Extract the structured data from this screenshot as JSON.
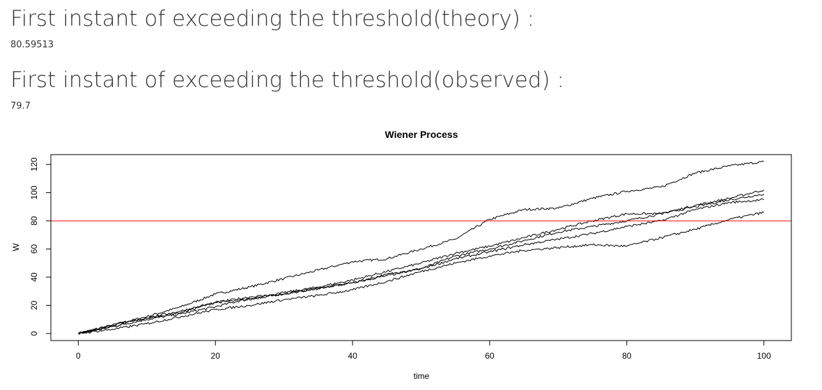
{
  "sections": [
    {
      "heading": "First instant of exceeding the threshold(theory) :",
      "value": "80.59513"
    },
    {
      "heading": "First instant of exceeding the threshold(observed) :",
      "value": "79.7"
    }
  ],
  "chart_data": {
    "type": "line",
    "title": "Wiener Process",
    "xlabel": "time",
    "ylabel": "W",
    "xlim": [
      -4,
      104
    ],
    "ylim": [
      -5,
      127
    ],
    "x_ticks": [
      0,
      20,
      40,
      60,
      80,
      100
    ],
    "y_ticks": [
      0,
      20,
      40,
      60,
      80,
      100,
      120
    ],
    "grid": false,
    "threshold": {
      "value": 80,
      "color": "#ff0000"
    },
    "line_color": "#000000",
    "series": [
      {
        "x": [
          0,
          5,
          10,
          15,
          20,
          25,
          30,
          35,
          40,
          45,
          50,
          55,
          60,
          65,
          70,
          75,
          80,
          85,
          90,
          95,
          100
        ],
        "values": [
          0,
          6,
          12,
          19,
          28,
          33,
          39,
          45,
          51,
          53,
          60,
          67,
          81,
          88,
          89,
          96,
          101,
          104,
          114,
          119,
          122
        ]
      },
      {
        "x": [
          0,
          5,
          10,
          15,
          20,
          25,
          30,
          35,
          40,
          45,
          50,
          55,
          60,
          65,
          70,
          75,
          80,
          85,
          90,
          95,
          100
        ],
        "values": [
          0,
          5,
          10,
          14,
          19,
          25,
          28,
          32,
          36,
          42,
          46,
          55,
          60,
          66,
          72,
          76,
          80,
          85,
          91,
          96,
          102
        ]
      },
      {
        "x": [
          0,
          5,
          10,
          15,
          20,
          25,
          30,
          35,
          40,
          45,
          50,
          55,
          60,
          65,
          70,
          75,
          80,
          85,
          90,
          95,
          100
        ],
        "values": [
          0,
          6,
          11,
          15,
          22,
          24,
          29,
          33,
          38,
          44,
          50,
          57,
          62,
          68,
          74,
          80,
          85,
          85,
          90,
          95,
          99
        ]
      },
      {
        "x": [
          0,
          5,
          10,
          15,
          20,
          25,
          30,
          35,
          40,
          45,
          50,
          55,
          60,
          65,
          70,
          75,
          80,
          85,
          90,
          95,
          100
        ],
        "values": [
          0,
          5,
          11,
          16,
          22,
          26,
          28,
          32,
          36,
          41,
          46,
          53,
          58,
          63,
          67,
          71,
          76,
          80,
          88,
          93,
          95
        ]
      },
      {
        "x": [
          0,
          5,
          10,
          15,
          20,
          25,
          30,
          35,
          40,
          45,
          50,
          55,
          60,
          65,
          70,
          75,
          80,
          85,
          90,
          95,
          100
        ],
        "values": [
          0,
          3,
          7,
          12,
          17,
          20,
          24,
          27,
          31,
          37,
          44,
          50,
          55,
          59,
          61,
          63,
          62,
          68,
          74,
          81,
          86
        ]
      }
    ]
  }
}
